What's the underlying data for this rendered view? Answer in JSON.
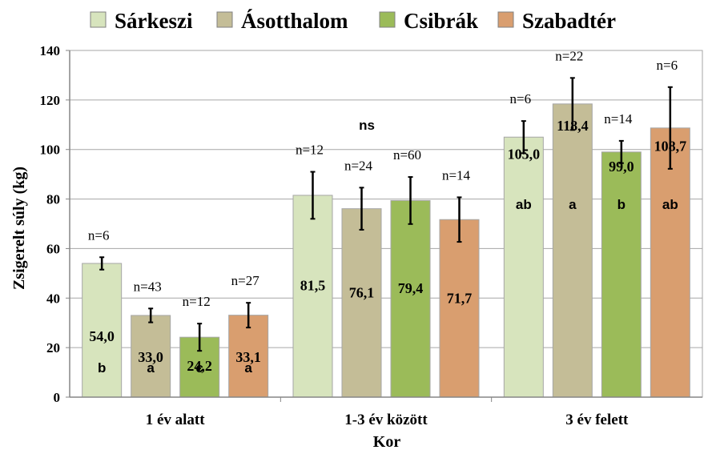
{
  "chart_data": {
    "type": "bar",
    "title": "",
    "xlabel": "Kor",
    "ylabel": "Zsigerelt súly (kg)",
    "ylim": [
      0,
      140
    ],
    "yticks": [
      0,
      20,
      40,
      60,
      80,
      100,
      120,
      140
    ],
    "grid": true,
    "legend_position": "top",
    "categories": [
      "1 év alatt",
      "1-3 év között",
      "3 év felett"
    ],
    "series": [
      {
        "name": "Sárkeszi",
        "color": "#d7e4bd",
        "values": [
          54.0,
          81.5,
          105.0
        ],
        "value_labels": [
          "54,0",
          "81,5",
          "105,0"
        ],
        "errors": [
          2.5,
          9.5,
          6.5
        ],
        "n_labels": [
          "n=6",
          "n=12",
          "n=6"
        ],
        "letters": [
          "b",
          "",
          "ab"
        ]
      },
      {
        "name": "Ásotthalom",
        "color": "#c4bd97",
        "values": [
          33.0,
          76.1,
          118.4
        ],
        "value_labels": [
          "33,0",
          "76,1",
          "118,4"
        ],
        "errors": [
          2.8,
          8.5,
          10.5
        ],
        "n_labels": [
          "n=43",
          "n=24",
          "n=22"
        ],
        "letters": [
          "a",
          "",
          "a"
        ]
      },
      {
        "name": "Csibrák",
        "color": "#9bbb59",
        "values": [
          24.2,
          79.4,
          99.0
        ],
        "value_labels": [
          "24,2",
          "79,4",
          "99,0"
        ],
        "errors": [
          5.5,
          9.5,
          4.5
        ],
        "n_labels": [
          "n=12",
          "n=60",
          "n=14"
        ],
        "letters": [
          "c",
          "",
          "b"
        ]
      },
      {
        "name": "Szabadtér",
        "color": "#d99e6f",
        "values": [
          33.1,
          71.7,
          108.7
        ],
        "value_labels": [
          "33,1",
          "71,7",
          "108,7"
        ],
        "errors": [
          5.0,
          9.0,
          16.5
        ],
        "n_labels": [
          "n=27",
          "n=14",
          "n=6"
        ],
        "letters": [
          "a",
          "",
          "ab"
        ]
      }
    ],
    "annotations": [
      {
        "text": "ns",
        "category": 1,
        "y": 108
      }
    ]
  }
}
